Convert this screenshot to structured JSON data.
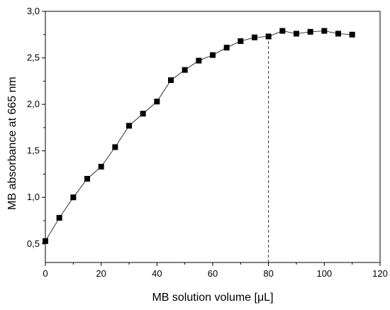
{
  "chart_data": {
    "type": "line",
    "xlabel": "MB solution volume [μL]",
    "ylabel": "MB absorbance at 665 nm",
    "xlim": [
      0,
      120
    ],
    "ylim": [
      0.3,
      3.0
    ],
    "xticks": [
      0,
      20,
      40,
      60,
      80,
      100,
      120
    ],
    "xtick_labels": [
      "0",
      "20",
      "40",
      "60",
      "80",
      "100",
      "120"
    ],
    "yticks": [
      0.5,
      1.0,
      1.5,
      2.0,
      2.5,
      3.0
    ],
    "ytick_labels": [
      "0,5",
      "1,0",
      "1,5",
      "2,0",
      "2,5",
      "3,0"
    ],
    "grid": false,
    "marker": "square",
    "series_color": "#000000",
    "reference_line": {
      "x": 80,
      "style": "dashed"
    },
    "series": [
      {
        "x": [
          0,
          5,
          10,
          15,
          20,
          25,
          30,
          35,
          40,
          45,
          50,
          55,
          60,
          65,
          70,
          75,
          80,
          85,
          90,
          95,
          100,
          105,
          110
        ],
        "values": [
          0.53,
          0.78,
          1.0,
          1.2,
          1.33,
          1.54,
          1.77,
          1.9,
          2.03,
          2.26,
          2.37,
          2.47,
          2.53,
          2.61,
          2.68,
          2.72,
          2.73,
          2.79,
          2.76,
          2.78,
          2.79,
          2.76,
          2.75
        ]
      }
    ]
  }
}
